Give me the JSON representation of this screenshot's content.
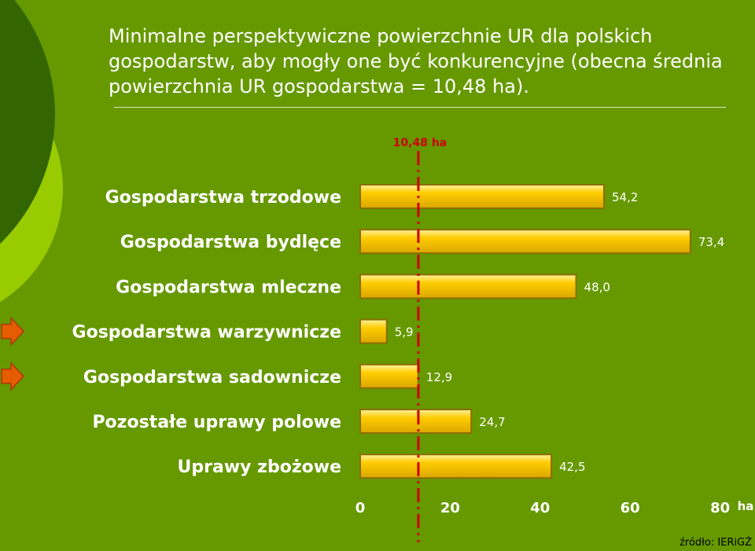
{
  "title": "Minimalne perspektywiczne powierzchnie UR dla polskich gospodarstw, aby mogły one być konkurencyjne (obecna średnia powierzchnia UR gospodarstwa = 10,48 ha).",
  "source": "źródło: IERiGŻ",
  "colors": {
    "background": "#669900",
    "bar_fill": "#ffcc00",
    "bar_border": "#8a6d00",
    "reference_line": "#cc0000",
    "arrow": "#e65c00"
  },
  "chart_data": {
    "type": "bar",
    "orientation": "horizontal",
    "categories": [
      "Gospodarstwa trzodowe",
      "Gospodarstwa bydlęce",
      "Gospodarstwa mleczne",
      "Gospodarstwa warzywnicze",
      "Gospodarstwa sadownicze",
      "Pozostałe uprawy polowe",
      "Uprawy zbożowe"
    ],
    "values": [
      54.2,
      73.4,
      48.0,
      5.9,
      12.9,
      24.7,
      42.5
    ],
    "value_labels": [
      "54,2",
      "73,4",
      "48,0",
      "5,9",
      "12,9",
      "24,7",
      "42,5"
    ],
    "highlighted": [
      "Gospodarstwa warzywnicze",
      "Gospodarstwa sadownicze"
    ],
    "xlim": [
      0,
      80
    ],
    "xticks": [
      0,
      20,
      40,
      60,
      80
    ],
    "x_unit": "ha",
    "reference_line": {
      "value": 10.48,
      "label": "10,48 ha"
    },
    "grid": false,
    "legend": "none"
  }
}
